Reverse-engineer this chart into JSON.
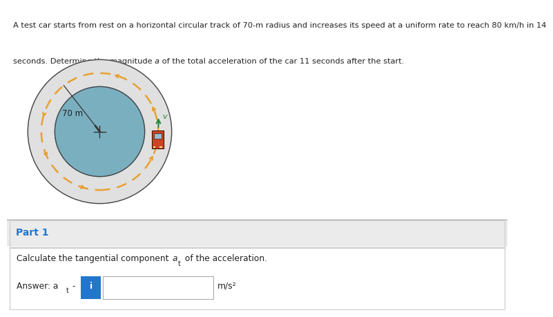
{
  "problem_line1": "A test car starts from rest on a horizontal circular track of 70-m radius and increases its speed at a uniform rate to reach 80 km/h in 14",
  "problem_line2": "seconds. Determine the magnitude a of the total acceleration of the car 11 seconds after the start.",
  "circle_bg": "#7aafc0",
  "track_color": "#e0e0e0",
  "dashed_color": "#e8a030",
  "radius_label": "70 m",
  "part1_label": "Part 1",
  "part1_color": "#2277cc",
  "question_text": "Calculate the tangential component aₜ of the acceleration.",
  "answer_unit": "m/s²",
  "info_icon_color": "#2277cc",
  "separator_color": "#cccccc",
  "top_bg": "#ffffff",
  "bottom_bg": "#f0f0f0",
  "inner_panel_bg": "#f8f8f8",
  "text_color": "#222222"
}
